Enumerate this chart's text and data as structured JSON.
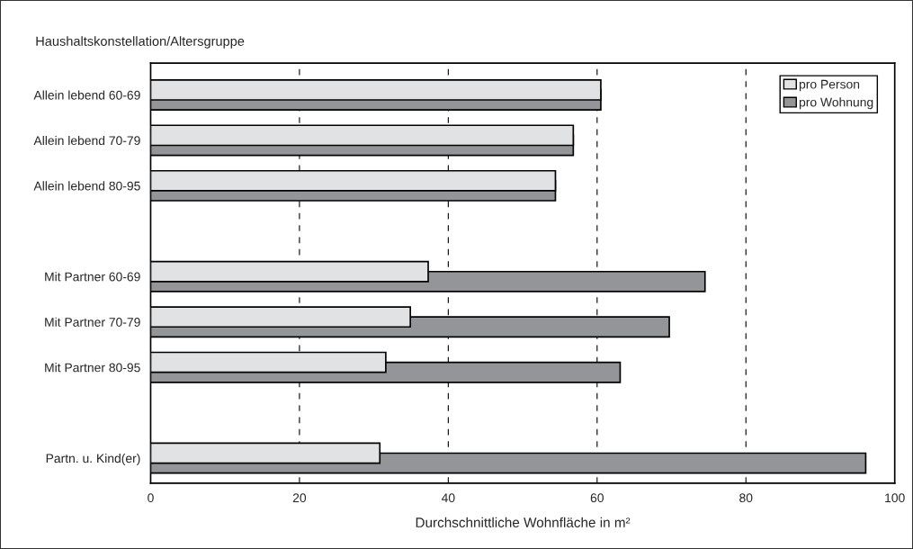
{
  "chart_data": {
    "type": "bar",
    "orientation": "horizontal",
    "ylabel": "Haushaltskonstellation/Altersgruppe",
    "xlabel": "Durchschnittliche Wohnfläche in m²",
    "categories": [
      "Allein lebend 60-69",
      "Allein lebend 70-79",
      "Allein lebend 80-95",
      null,
      "Mit Partner 60-69",
      "Mit Partner 70-79",
      "Mit Partner 80-95",
      null,
      "Partn. u. Kind(er)"
    ],
    "series": [
      {
        "name": "pro Person",
        "color": "#e1e2e4",
        "values": [
          60.5,
          56.8,
          54.4,
          null,
          37.3,
          34.9,
          31.6,
          null,
          30.8
        ]
      },
      {
        "name": "pro Wohnung",
        "color": "#939598",
        "values": [
          60.5,
          56.8,
          54.4,
          null,
          74.5,
          69.7,
          63.1,
          null,
          96.1
        ]
      }
    ],
    "xlim": [
      0,
      100
    ],
    "xticks": [
      0,
      20,
      40,
      60,
      80,
      100
    ],
    "grid": "x",
    "legend": "top right"
  }
}
